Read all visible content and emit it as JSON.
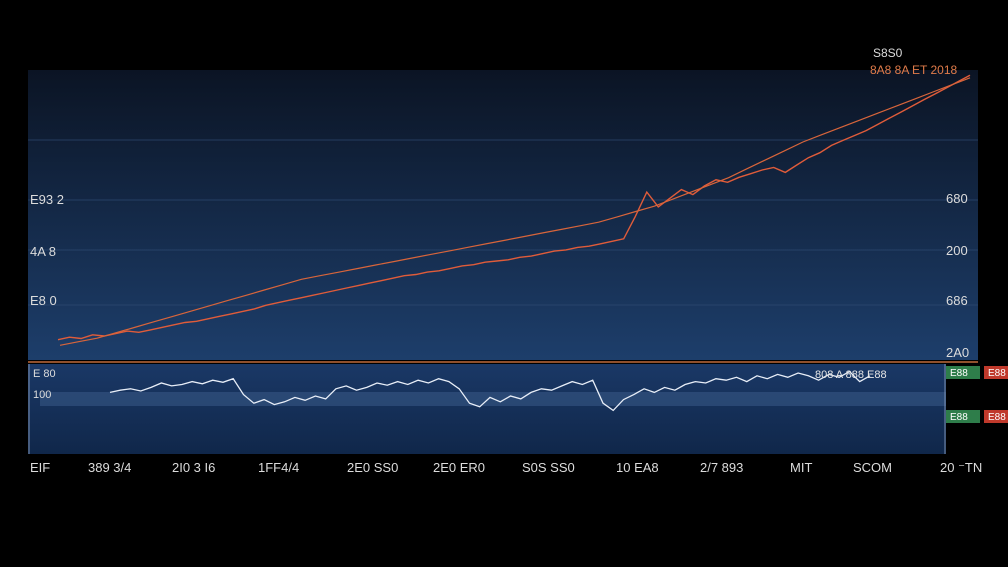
{
  "colors": {
    "background": "#000000",
    "panel_top": "#0b1424",
    "panel_bottom": "#1d3e6b",
    "lower_panel_top": "#1a3866",
    "lower_panel_bottom": "#10274a",
    "price_line": "#e05c3a",
    "avg_line": "#d8653b",
    "oscillator_line": "#e8eef8",
    "grid": "#2f4a72",
    "badge_green": "#2e7d4a",
    "badge_red": "#c0392b",
    "text": "#dcdcdc",
    "separator": "#c06a3a"
  },
  "header_labels": [
    "S8S0",
    "8A8 8A  ET  2018"
  ],
  "chart_data": {
    "type": "line",
    "x_tick_labels": [
      "EIF",
      "389 3/4",
      "2I0 3 I6",
      "1FF4/4",
      "2E0 SS0",
      "2E0 ER0",
      "S0S SS0",
      "10 EA8",
      "2/7 893",
      "MIT",
      "SCOM",
      "20 ⁻TN"
    ],
    "y_left_tick_labels": [
      "E93 2",
      "4A 8",
      "E8 0"
    ],
    "y_right_tick_labels": [
      "680",
      "200",
      "686",
      "2A0"
    ],
    "series": [
      {
        "values": [
          10,
          12,
          11,
          14,
          13,
          15,
          17,
          16,
          18,
          20,
          22,
          24,
          25,
          27,
          29,
          31,
          33,
          35,
          38,
          40,
          42,
          44,
          46,
          48,
          50,
          52,
          54,
          56,
          58,
          60,
          62,
          63,
          65,
          66,
          68,
          70,
          71,
          73,
          74,
          75,
          77,
          78,
          80,
          82,
          83,
          85,
          86,
          88,
          90,
          92,
          110,
          130,
          118,
          125,
          132,
          128,
          135,
          140,
          138,
          142,
          145,
          148,
          150,
          146,
          152,
          158,
          162,
          168,
          172,
          176,
          180,
          185,
          190,
          195,
          200,
          205,
          210,
          215,
          220,
          225
        ]
      },
      {
        "values": [
          6,
          8,
          10,
          13,
          16,
          19,
          22,
          25,
          28,
          31,
          34,
          37,
          40,
          43,
          45,
          47,
          49,
          51,
          53,
          55,
          57,
          59,
          61,
          63,
          65,
          67,
          69,
          71,
          73,
          75,
          78,
          81,
          84,
          88,
          92,
          96,
          100,
          105,
          110,
          115,
          120,
          124,
          128,
          132,
          136,
          140,
          144,
          148,
          152,
          156
        ]
      }
    ],
    "oscillator": {
      "values": [
        55,
        58,
        60,
        57,
        62,
        68,
        64,
        66,
        70,
        67,
        72,
        69,
        74,
        52,
        40,
        45,
        38,
        42,
        48,
        44,
        50,
        46,
        60,
        64,
        58,
        62,
        68,
        65,
        70,
        66,
        72,
        68,
        74,
        70,
        60,
        40,
        35,
        48,
        42,
        50,
        46,
        55,
        60,
        58,
        64,
        70,
        66,
        72,
        40,
        30,
        45,
        52,
        60,
        55,
        62,
        58,
        66,
        70,
        68,
        74,
        72,
        76,
        70,
        78,
        74,
        80,
        76,
        82,
        78,
        72,
        80,
        76,
        84,
        70,
        78
      ]
    },
    "lower_right_badges": [
      "E88",
      "E88",
      "E88",
      "E88"
    ],
    "lower_left_tick_labels": [
      "E 80",
      "100"
    ],
    "lower_inline_text": "808  A  888 E88",
    "grid": true
  }
}
